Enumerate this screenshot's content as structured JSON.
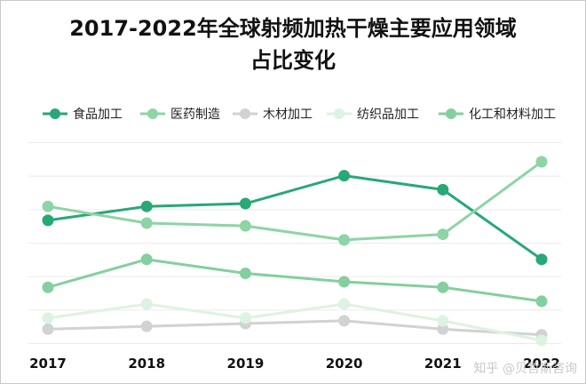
{
  "chart_data": {
    "type": "line",
    "title_line1": "2017-2022年全球射频加热干燥主要应用领域",
    "title_line2": "占比变化",
    "x": [
      "2017",
      "2018",
      "2019",
      "2020",
      "2021",
      "2022"
    ],
    "series": [
      {
        "name": "食品加工",
        "color": "#27a877",
        "values": [
          44,
          49,
          50,
          60,
          55,
          30
        ]
      },
      {
        "name": "医药制造",
        "color": "#8ed4a5",
        "values": [
          49,
          43,
          42,
          37,
          39,
          65
        ]
      },
      {
        "name": "木材加工",
        "color": "#d2d2d2",
        "values": [
          5,
          6,
          7,
          8,
          5,
          3
        ]
      },
      {
        "name": "纺织品加工",
        "color": "#ddf3e1",
        "values": [
          9,
          14,
          9,
          14,
          8,
          1
        ]
      },
      {
        "name": "化工和材料加工",
        "color": "#84cf9f",
        "values": [
          20,
          30,
          25,
          22,
          20,
          15
        ]
      }
    ],
    "ylim": [
      0,
      72
    ],
    "grid": true,
    "legend": "top"
  },
  "watermark": "知乎 @贝哲斯咨询"
}
